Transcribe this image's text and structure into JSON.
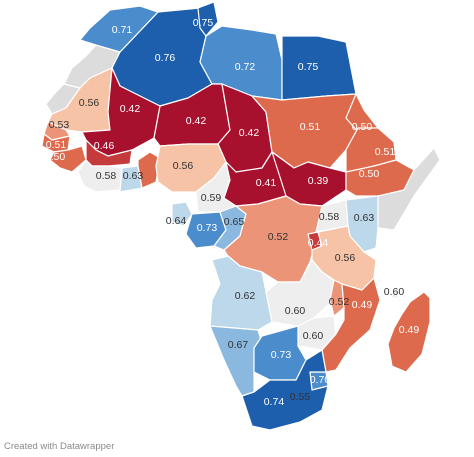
{
  "footer": "Created with Datawrapper",
  "colors": {
    "nodata": "#dcdcdc",
    "scale": [
      "#a8112e",
      "#c53a3a",
      "#dd6a4c",
      "#eb9478",
      "#f6c3a6",
      "#eeeeee",
      "#bdd7eb",
      "#8ab8de",
      "#4a8ccc",
      "#1d5fac"
    ]
  },
  "regions": [
    {
      "id": "morocco",
      "value": null
    },
    {
      "id": "western-sahara",
      "value": null
    },
    {
      "id": "algeria",
      "value": 0.76,
      "label": "0.76"
    },
    {
      "id": "tunisia-north",
      "value": 0.71,
      "label": "0.71"
    },
    {
      "id": "tunisia",
      "value": 0.75,
      "label": "0.75"
    },
    {
      "id": "libya",
      "value": 0.72,
      "label": "0.72"
    },
    {
      "id": "egypt",
      "value": 0.75,
      "label": "0.75"
    },
    {
      "id": "mauritania",
      "value": 0.56,
      "label": "0.56"
    },
    {
      "id": "mali",
      "value": 0.42,
      "label": "0.42"
    },
    {
      "id": "niger",
      "value": 0.42,
      "label": "0.42"
    },
    {
      "id": "chad",
      "value": 0.42,
      "label": "0.42"
    },
    {
      "id": "sudan",
      "value": 0.51,
      "label": "0.51"
    },
    {
      "id": "eritrea",
      "value": 0.5,
      "label": "0.50"
    },
    {
      "id": "senegal",
      "value": 0.53,
      "label": "0.53"
    },
    {
      "id": "guinea-bissau",
      "value": 0.51,
      "label": "0.51"
    },
    {
      "id": "guinea",
      "value": 0.5,
      "label": "0.50"
    },
    {
      "id": "burkina-faso",
      "value": 0.46,
      "label": "0.46"
    },
    {
      "id": "cote-divoire",
      "value": 0.58,
      "label": "0.58"
    },
    {
      "id": "ghana",
      "value": 0.63,
      "label": "0.63"
    },
    {
      "id": "togo-benin",
      "value": 0.5
    },
    {
      "id": "nigeria",
      "value": 0.56,
      "label": "0.56"
    },
    {
      "id": "cameroon",
      "value": 0.59,
      "label": "0.59"
    },
    {
      "id": "car",
      "value": 0.41,
      "label": "0.41"
    },
    {
      "id": "south-sudan",
      "value": 0.39,
      "label": "0.39"
    },
    {
      "id": "ethiopia",
      "value": 0.51,
      "label": "0.51"
    },
    {
      "id": "djibouti-ethiopia-east",
      "value": 0.5,
      "label": "0.50"
    },
    {
      "id": "somalia",
      "value": null
    },
    {
      "id": "eq-guinea",
      "value": 0.64,
      "label": "0.64"
    },
    {
      "id": "gabon",
      "value": 0.73,
      "label": "0.73"
    },
    {
      "id": "congo",
      "value": 0.65,
      "label": "0.65"
    },
    {
      "id": "drc",
      "value": 0.52,
      "label": "0.52"
    },
    {
      "id": "uganda",
      "value": 0.58,
      "label": "0.58"
    },
    {
      "id": "kenya",
      "value": 0.63,
      "label": "0.63"
    },
    {
      "id": "rwanda-burundi",
      "value": 0.44,
      "label": "0.44"
    },
    {
      "id": "tanzania",
      "value": 0.56,
      "label": "0.56"
    },
    {
      "id": "angola",
      "value": 0.62,
      "label": "0.62"
    },
    {
      "id": "zambia",
      "value": 0.6,
      "label": "0.60"
    },
    {
      "id": "malawi",
      "value": 0.52,
      "label": "0.52"
    },
    {
      "id": "mozambique",
      "value": 0.49,
      "label": "0.49"
    },
    {
      "id": "zimbabwe",
      "value": 0.6,
      "label": "0.60"
    },
    {
      "id": "comoros",
      "value": 0.6,
      "label": "0.60"
    },
    {
      "id": "madagascar",
      "value": 0.49,
      "label": "0.49"
    },
    {
      "id": "namibia",
      "value": 0.67,
      "label": "0.67"
    },
    {
      "id": "botswana",
      "value": 0.73,
      "label": "0.73"
    },
    {
      "id": "eswatini",
      "value": 0.7,
      "label": "0.70"
    },
    {
      "id": "south-africa",
      "value": 0.74,
      "label": "0.74"
    },
    {
      "id": "lesotho",
      "value": 0.55,
      "label": "0.55"
    }
  ]
}
